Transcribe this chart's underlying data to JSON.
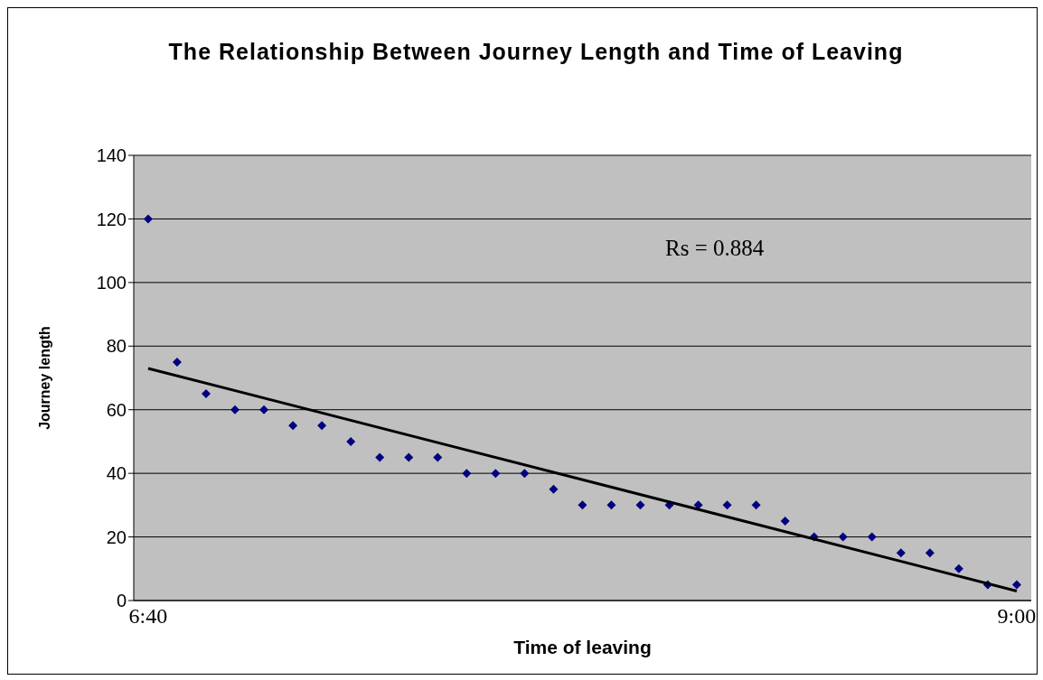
{
  "chart_data": {
    "type": "scatter",
    "title": "The Relationship Between Journey Length and Time of Leaving",
    "xlabel": "Time of leaving",
    "ylabel": "Journey length",
    "annotations": [
      "Rs = 0.884"
    ],
    "xlim": [
      6.628,
      9.039
    ],
    "xticks": [
      {
        "value": 6.6667,
        "label": "6:40"
      },
      {
        "value": 9,
        "label": "9:00"
      }
    ],
    "ylim": [
      0,
      140
    ],
    "yticks": [
      0,
      20,
      40,
      60,
      80,
      100,
      120,
      140
    ],
    "grid": "y",
    "marker": "diamond",
    "series": [
      {
        "color": "#000080",
        "x": [
          6.6667,
          6.7444,
          6.8222,
          6.9,
          6.9778,
          7.0556,
          7.1333,
          7.2111,
          7.2889,
          7.3667,
          7.4444,
          7.5222,
          7.6,
          7.6778,
          7.7556,
          7.8333,
          7.9111,
          7.9889,
          8.0667,
          8.1444,
          8.2222,
          8.3,
          8.3778,
          8.4556,
          8.5333,
          8.6111,
          8.6889,
          8.7667,
          8.8444,
          8.9222,
          9
        ],
        "values": [
          120,
          75,
          65,
          60,
          60,
          55,
          55,
          50,
          45,
          45,
          45,
          40,
          40,
          40,
          35,
          30,
          30,
          30,
          30,
          30,
          30,
          30,
          25,
          20,
          20,
          20,
          15,
          15,
          10,
          5,
          5
        ]
      },
      {
        "type": "line",
        "color": "#000000",
        "x": [
          6.6667,
          9
        ],
        "values": [
          73,
          3
        ],
        "marker": "none"
      }
    ]
  }
}
